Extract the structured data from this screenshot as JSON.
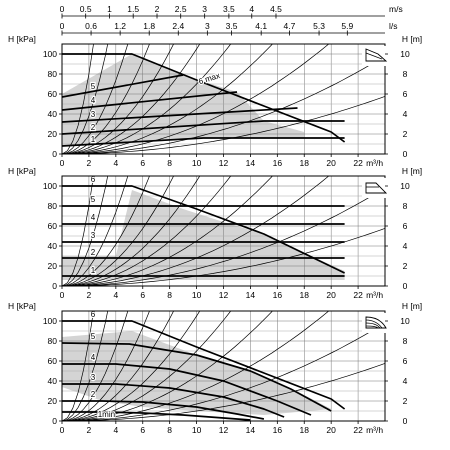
{
  "chart_data": {
    "type": "line",
    "top_axes": [
      {
        "label": "m/s",
        "ticks": [
          {
            "label": "0",
            "q": 0
          },
          {
            "label": "0.5",
            "q": 1.76
          },
          {
            "label": "1",
            "q": 3.53
          },
          {
            "label": "1.5",
            "q": 5.29
          },
          {
            "label": "2",
            "q": 7.06
          },
          {
            "label": "2.5",
            "q": 8.82
          },
          {
            "label": "3",
            "q": 10.6
          },
          {
            "label": "3.5",
            "q": 12.4
          },
          {
            "label": "4",
            "q": 14.1
          },
          {
            "label": "4.5",
            "q": 15.9
          }
        ]
      },
      {
        "label": "l/s",
        "ticks": [
          {
            "label": "0",
            "q": 0
          },
          {
            "label": "0.6",
            "q": 2.16
          },
          {
            "label": "1.2",
            "q": 4.32
          },
          {
            "label": "1.8",
            "q": 6.48
          },
          {
            "label": "2.4",
            "q": 8.64
          },
          {
            "label": "3",
            "q": 10.8
          },
          {
            "label": "3.5",
            "q": 12.6
          },
          {
            "label": "4.1",
            "q": 14.8
          },
          {
            "label": "4.7",
            "q": 16.9
          },
          {
            "label": "5.3",
            "q": 19.1
          },
          {
            "label": "5.9",
            "q": 21.2
          }
        ]
      }
    ],
    "x_axis": {
      "label": "m³/h",
      "range": [
        0,
        24
      ],
      "ticks": [
        0,
        2,
        4,
        6,
        8,
        10,
        12,
        14,
        16,
        18,
        20,
        22
      ]
    },
    "y_axis_left": {
      "label": "H [kPa]",
      "range": [
        0,
        110
      ],
      "ticks": [
        0,
        20,
        40,
        60,
        80,
        100
      ]
    },
    "y_axis_right": {
      "label": "H [m]",
      "range": [
        0,
        11
      ],
      "ticks": [
        0,
        2,
        4,
        6,
        8,
        10
      ]
    },
    "grid": "on",
    "system_curve_coefficients": [
      0.1,
      0.17,
      0.28,
      0.45,
      0.7,
      1.05,
      1.6,
      2.6,
      4.6,
      9.5,
      20
    ],
    "panels": [
      {
        "icon": "proportional-pressure-icon",
        "speed_curves": [
          {
            "label": "1",
            "x": [
              0,
              10.5,
              21
            ],
            "y": [
              8,
              16,
              16
            ]
          },
          {
            "label": "2",
            "x": [
              0,
              15,
              21
            ],
            "y": [
              20,
              33,
              33
            ]
          },
          {
            "label": "3",
            "x": [
              0,
              17.5
            ],
            "y": [
              32,
              46
            ]
          },
          {
            "label": "4",
            "x": [
              0,
              13
            ],
            "y": [
              44,
              62
            ]
          },
          {
            "label": "5",
            "x": [
              0,
              9
            ],
            "y": [
              57,
              79
            ]
          },
          {
            "label": "6 max",
            "x": [
              0,
              5.2,
              10,
              15,
              20,
              21
            ],
            "y": [
              100,
              100,
              74,
              48,
              22,
              12
            ]
          }
        ],
        "band": [
          [
            0,
            8
          ],
          [
            10.5,
            16
          ],
          [
            18,
            16
          ],
          [
            18,
            22
          ],
          [
            15,
            33
          ],
          [
            13,
            62
          ],
          [
            9,
            79
          ],
          [
            5.2,
            100
          ],
          [
            0,
            60
          ]
        ]
      },
      {
        "icon": "constant-pressure-icon",
        "speed_curves": [
          {
            "label": "1",
            "x": [
              0,
              21
            ],
            "y": [
              10,
              10
            ]
          },
          {
            "label": "2",
            "x": [
              0,
              21
            ],
            "y": [
              28,
              28
            ]
          },
          {
            "label": "3",
            "x": [
              0,
              21
            ],
            "y": [
              44,
              44
            ]
          },
          {
            "label": "4",
            "x": [
              0,
              21
            ],
            "y": [
              62,
              62
            ]
          },
          {
            "label": "5",
            "x": [
              0,
              21
            ],
            "y": [
              80,
              80
            ]
          },
          {
            "label": "6",
            "x": [
              0,
              5.2,
              10,
              15,
              21
            ],
            "y": [
              100,
              100,
              77,
              52,
              13
            ]
          }
        ],
        "band": [
          [
            0,
            30
          ],
          [
            4,
            30
          ],
          [
            5.2,
            96
          ],
          [
            9,
            77
          ],
          [
            12,
            64
          ],
          [
            15,
            52
          ],
          [
            18,
            33
          ],
          [
            21,
            15
          ],
          [
            21,
            6
          ],
          [
            0,
            6
          ]
        ]
      },
      {
        "icon": "constant-curve-icon",
        "speed_curves": [
          {
            "label": "1min",
            "x": [
              0,
              3,
              6,
              9,
              12,
              14
            ],
            "y": [
              9,
              9,
              8,
              6,
              3,
              1
            ]
          },
          {
            "label": "2",
            "x": [
              0,
              3,
              6,
              10,
              13,
              15
            ],
            "y": [
              20,
              20,
              19,
              14,
              7,
              2
            ]
          },
          {
            "label": "3",
            "x": [
              0,
              4,
              8,
              12,
              15,
              16.5
            ],
            "y": [
              37,
              37,
              33,
              24,
              12,
              4
            ]
          },
          {
            "label": "4",
            "x": [
              0,
              4,
              8,
              12,
              16,
              18.5
            ],
            "y": [
              57,
              57,
              52,
              40,
              20,
              6
            ]
          },
          {
            "label": "5",
            "x": [
              0,
              5,
              10,
              14,
              17,
              20
            ],
            "y": [
              78,
              77,
              66,
              50,
              32,
              10
            ]
          },
          {
            "label": "6",
            "x": [
              0,
              5.2,
              10,
              15,
              20,
              21
            ],
            "y": [
              100,
              100,
              74,
              48,
              22,
              12
            ]
          }
        ],
        "band": [
          [
            0,
            84
          ],
          [
            5.2,
            90
          ],
          [
            10,
            66
          ],
          [
            14,
            50
          ],
          [
            18,
            26
          ],
          [
            20,
            12
          ],
          [
            15,
            6
          ],
          [
            10,
            10
          ],
          [
            6,
            14
          ],
          [
            3,
            20
          ],
          [
            0,
            34
          ]
        ]
      }
    ]
  }
}
